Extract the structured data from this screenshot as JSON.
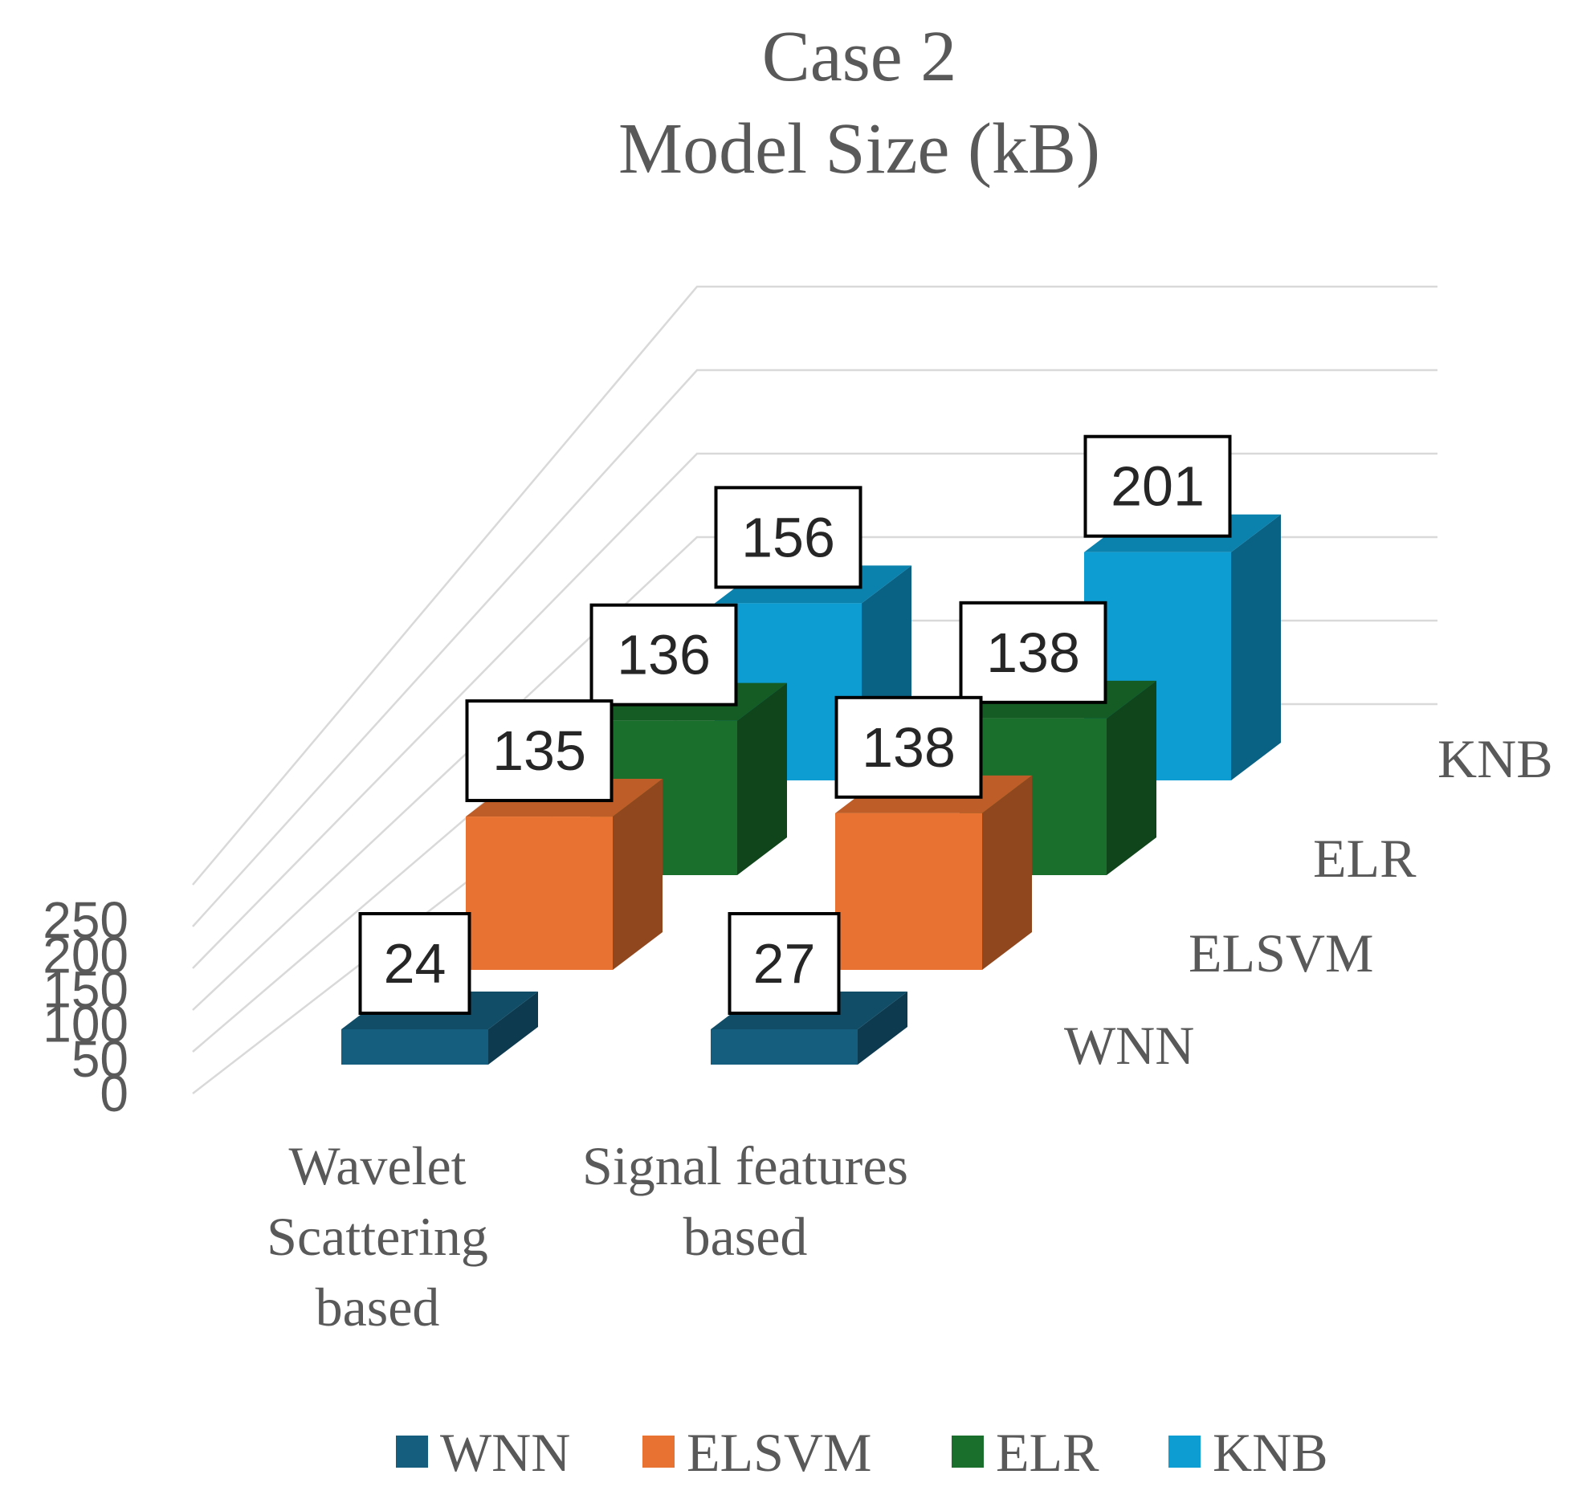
{
  "chart_data": {
    "type": "bar",
    "title_lines": [
      "Case 2",
      "Model Size (kB)"
    ],
    "categories": [
      "Wavelet Scattering based",
      "Signal features based"
    ],
    "category_label_lines": [
      [
        "Wavelet",
        "Scattering",
        "based"
      ],
      [
        "Signal features",
        "based"
      ]
    ],
    "series": [
      {
        "name": "WNN",
        "values": [
          24,
          27
        ],
        "color": "#155e7e"
      },
      {
        "name": "ELSVM",
        "values": [
          135,
          138
        ],
        "color": "#e87231"
      },
      {
        "name": "ELR",
        "values": [
          136,
          138
        ],
        "color": "#1a6f2c"
      },
      {
        "name": "KNB",
        "values": [
          156,
          201
        ],
        "color": "#0e9dd3"
      }
    ],
    "depth_axis_labels": [
      "WNN",
      "ELSVM",
      "ELR",
      "KNB"
    ],
    "y_ticks": [
      0,
      50,
      100,
      150,
      200,
      250
    ],
    "ylim": [
      0,
      250
    ],
    "xlabel": "",
    "ylabel": "",
    "grid": true,
    "legend_position": "bottom"
  }
}
